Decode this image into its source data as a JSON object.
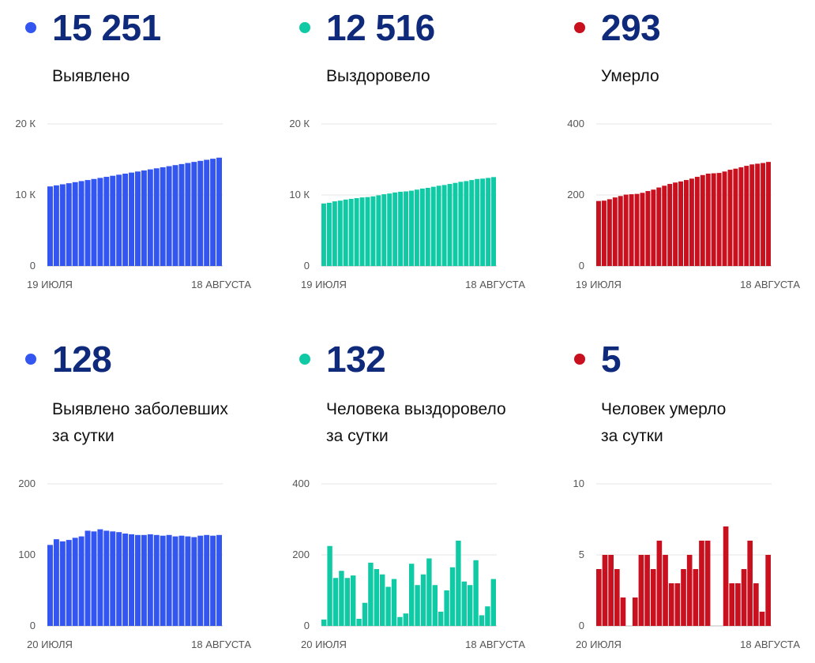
{
  "colors": {
    "blue": "#3355f0",
    "teal": "#0fcaa5",
    "red": "#c8101e",
    "number": "#0f2a7a"
  },
  "panels": [
    {
      "number": "15 251",
      "label_lines": [
        "Выявлено"
      ],
      "color": "blue"
    },
    {
      "number": "12 516",
      "label_lines": [
        "Выздоровело"
      ],
      "color": "teal"
    },
    {
      "number": "293",
      "label_lines": [
        "Умерло"
      ],
      "color": "red"
    },
    {
      "number": "128",
      "label_lines": [
        "Выявлено заболевших",
        "за сутки"
      ],
      "color": "blue"
    },
    {
      "number": "132",
      "label_lines": [
        "Человека выздоровело",
        "за сутки"
      ],
      "color": "teal"
    },
    {
      "number": "5",
      "label_lines": [
        "Человек умерло",
        "за сутки"
      ],
      "color": "red"
    }
  ],
  "chart_data": [
    {
      "type": "bar",
      "x_start": "19 ИЮЛЯ",
      "x_end": "18 АВГУСТА",
      "yticks": [
        "0",
        "10 К",
        "20 К"
      ],
      "ylim": [
        0,
        20000
      ],
      "grid": true,
      "values": [
        11200,
        11350,
        11500,
        11650,
        11800,
        11950,
        12100,
        12250,
        12400,
        12550,
        12700,
        12850,
        13000,
        13150,
        13300,
        13450,
        13600,
        13750,
        13900,
        14050,
        14200,
        14350,
        14500,
        14650,
        14800,
        14950,
        15100,
        15251
      ]
    },
    {
      "type": "bar",
      "x_start": "19 ИЮЛЯ",
      "x_end": "18 АВГУСТА",
      "yticks": [
        "0",
        "10 К",
        "20 К"
      ],
      "ylim": [
        0,
        20000
      ],
      "grid": true,
      "values": [
        8800,
        8900,
        9100,
        9200,
        9350,
        9450,
        9550,
        9650,
        9700,
        9800,
        9950,
        10100,
        10200,
        10350,
        10450,
        10500,
        10600,
        10750,
        10900,
        11000,
        11150,
        11300,
        11400,
        11550,
        11700,
        11850,
        11950,
        12100,
        12250,
        12300,
        12400,
        12516
      ]
    },
    {
      "type": "bar",
      "x_start": "19 ИЮЛЯ",
      "x_end": "18 АВГУСТА",
      "yticks": [
        "0",
        "200",
        "400"
      ],
      "ylim": [
        0,
        400
      ],
      "grid": true,
      "values": [
        183,
        184,
        188,
        193,
        197,
        201,
        202,
        203,
        206,
        211,
        215,
        221,
        226,
        231,
        235,
        238,
        242,
        246,
        251,
        256,
        260,
        261,
        262,
        266,
        271,
        274,
        278,
        282,
        286,
        288,
        290,
        293
      ]
    },
    {
      "type": "bar",
      "x_start": "20 ИЮЛЯ",
      "x_end": "18 АВГУСТА",
      "yticks": [
        "0",
        "100",
        "200"
      ],
      "ylim": [
        0,
        200
      ],
      "grid": true,
      "values": [
        114,
        122,
        119,
        121,
        124,
        126,
        134,
        133,
        136,
        134,
        133,
        132,
        130,
        129,
        128,
        128,
        129,
        128,
        127,
        128,
        126,
        127,
        126,
        125,
        127,
        128,
        127,
        128
      ]
    },
    {
      "type": "bar",
      "x_start": "20 ИЮЛЯ",
      "x_end": "18 АВГУСТА",
      "yticks": [
        "0",
        "200",
        "400"
      ],
      "ylim": [
        0,
        400
      ],
      "grid": true,
      "values": [
        18,
        225,
        135,
        155,
        135,
        142,
        20,
        65,
        178,
        160,
        145,
        110,
        132,
        25,
        35,
        175,
        115,
        145,
        190,
        115,
        40,
        100,
        165,
        240,
        125,
        115,
        185,
        30,
        55,
        132
      ]
    },
    {
      "type": "bar",
      "x_start": "20 ИЮЛЯ",
      "x_end": "18 АВГУСТА",
      "yticks": [
        "0",
        "5",
        "10"
      ],
      "ylim": [
        0,
        10
      ],
      "grid": true,
      "values": [
        4,
        5,
        5,
        4,
        2,
        0,
        2,
        5,
        5,
        4,
        6,
        5,
        3,
        3,
        4,
        5,
        4,
        6,
        6,
        0,
        0,
        7,
        3,
        3,
        4,
        6,
        3,
        1,
        5
      ]
    }
  ]
}
